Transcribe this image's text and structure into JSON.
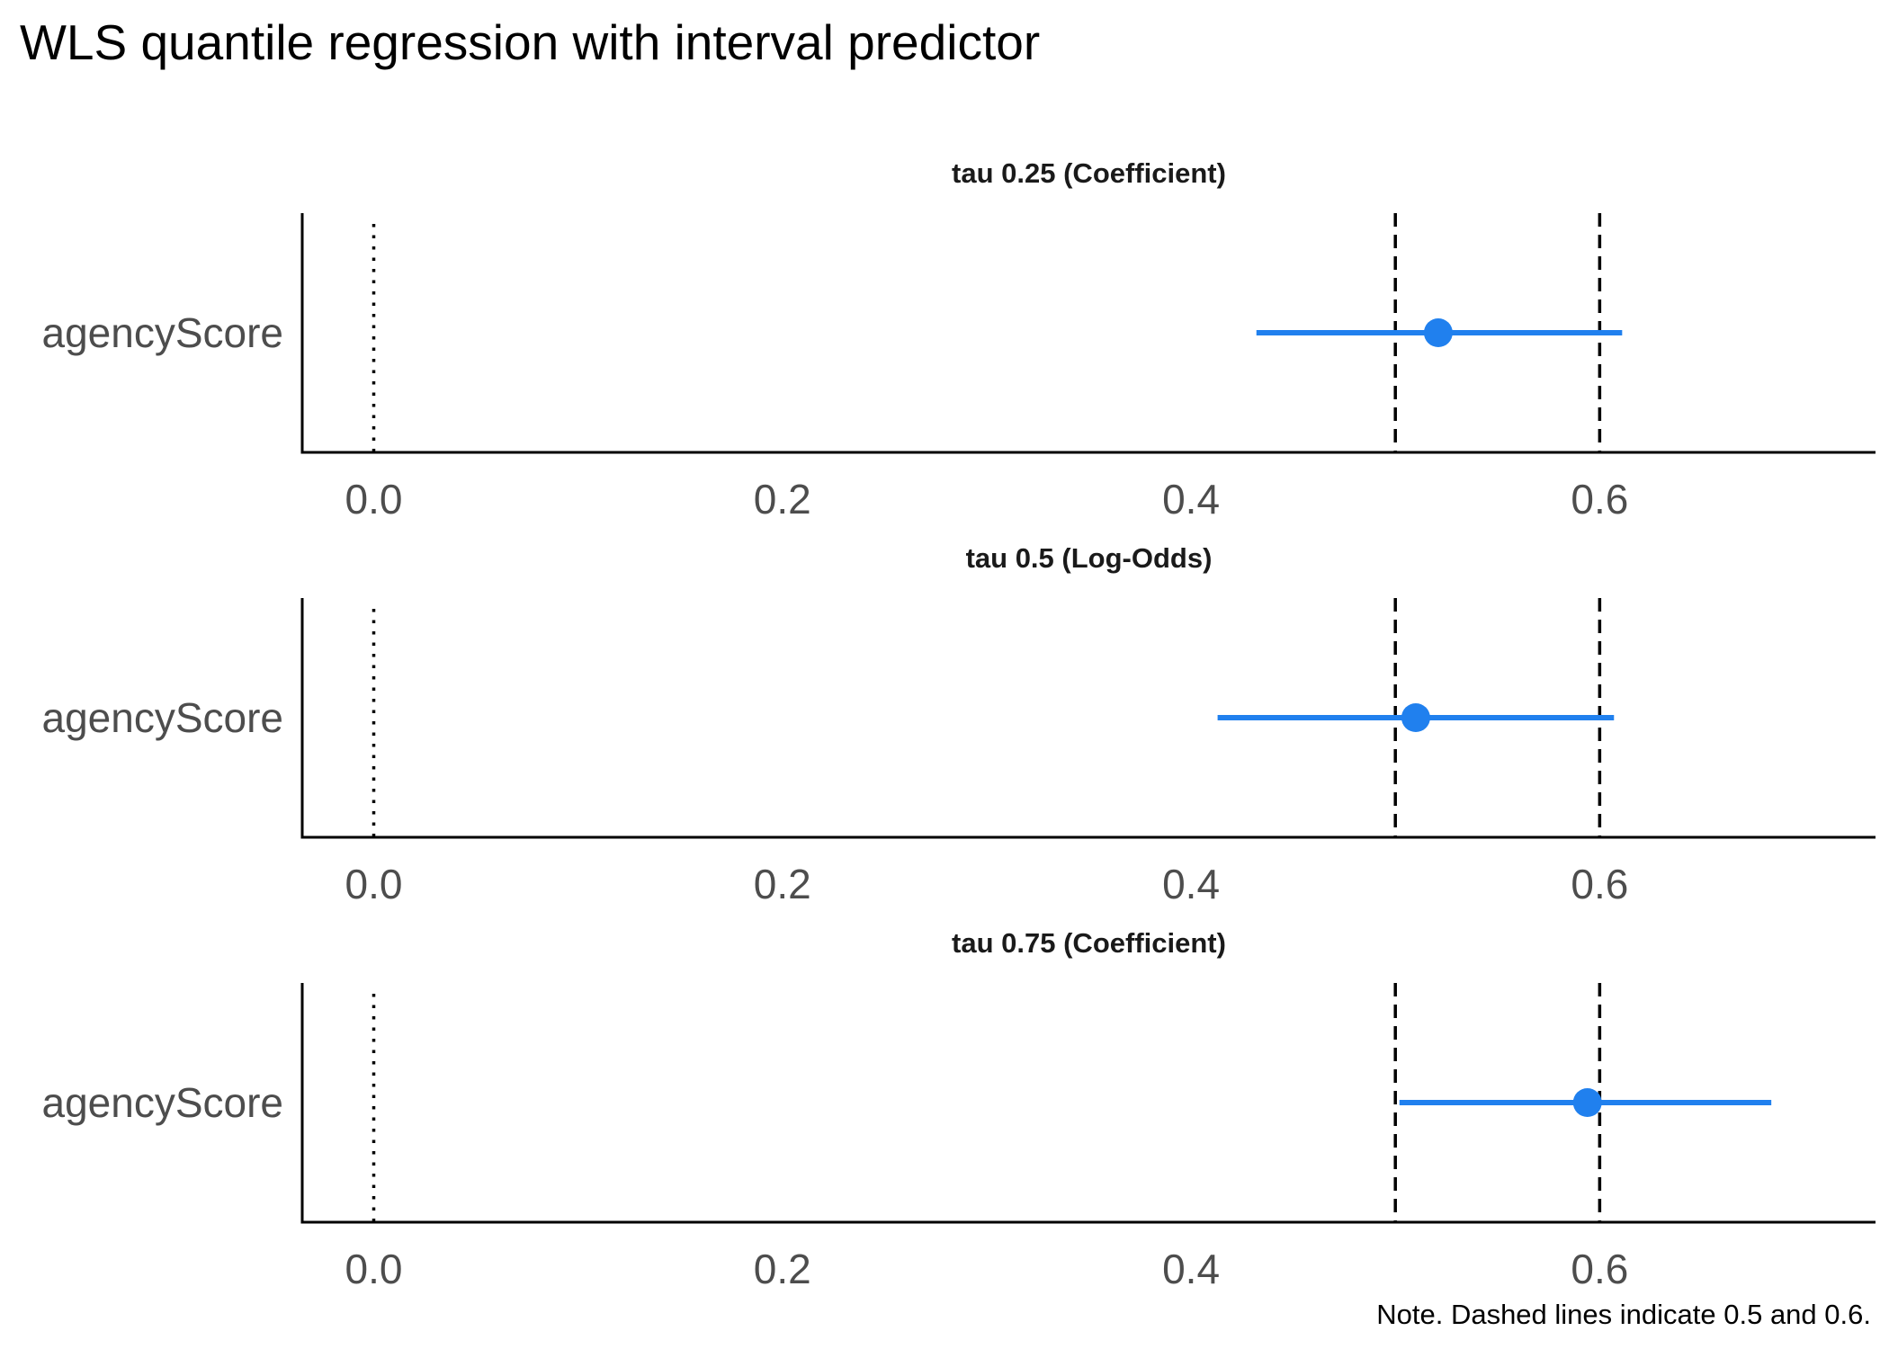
{
  "chart_data": {
    "type": "forest",
    "title": "WLS quantile regression with interval predictor",
    "note": "Note. Dashed lines indicate 0.5 and 0.6.",
    "xlim": [
      -0.035,
      0.735
    ],
    "x_ticks": [
      0.0,
      0.2,
      0.4,
      0.6
    ],
    "x_tick_labels": [
      "0.0",
      "0.2",
      "0.4",
      "0.6"
    ],
    "zero_line": 0,
    "reference_lines": [
      0.5,
      0.6
    ],
    "point_color": "#2080EE",
    "panels": [
      {
        "title": "tau 0.25 (Coefficient)",
        "term": "agencyScore",
        "estimate": 0.521,
        "lower": 0.432,
        "upper": 0.611
      },
      {
        "title": "tau 0.5 (Log-Odds)",
        "term": "agencyScore",
        "estimate": 0.51,
        "lower": 0.413,
        "upper": 0.607
      },
      {
        "title": "tau 0.75 (Coefficient)",
        "term": "agencyScore",
        "estimate": 0.594,
        "lower": 0.502,
        "upper": 0.684
      }
    ]
  }
}
